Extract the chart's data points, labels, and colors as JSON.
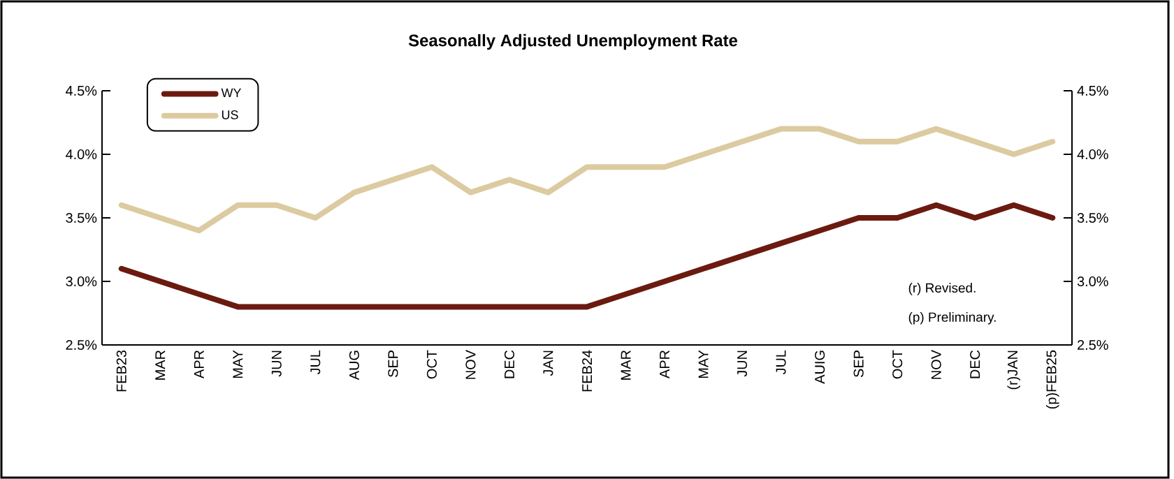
{
  "chart_data": {
    "type": "line",
    "title": "Seasonally Adjusted Unemployment Rate",
    "categories": [
      "FEB23",
      "MAR",
      "APR",
      "MAY",
      "JUN",
      "JUL",
      "AUG",
      "SEP",
      "OCT",
      "NOV",
      "DEC",
      "JAN",
      "FEB24",
      "MAR",
      "APR",
      "MAY",
      "JUN",
      "JUL",
      "AUIG",
      "SEP",
      "OCT",
      "NOV",
      "DEC",
      "(r)JAN",
      "(p)FEB25"
    ],
    "series": [
      {
        "name": "WY",
        "color": "#6b1a10",
        "values": [
          3.1,
          3.0,
          2.9,
          2.8,
          2.8,
          2.8,
          2.8,
          2.8,
          2.8,
          2.8,
          2.8,
          2.8,
          2.8,
          2.9,
          3.0,
          3.1,
          3.2,
          3.3,
          3.4,
          3.5,
          3.5,
          3.6,
          3.5,
          3.6,
          3.5
        ]
      },
      {
        "name": "US",
        "color": "#dccba0",
        "values": [
          3.6,
          3.5,
          3.4,
          3.6,
          3.6,
          3.5,
          3.7,
          3.8,
          3.9,
          3.7,
          3.8,
          3.7,
          3.9,
          3.9,
          3.9,
          4.0,
          4.1,
          4.2,
          4.2,
          4.1,
          4.1,
          4.2,
          4.1,
          4.0,
          4.1
        ]
      }
    ],
    "ylim": [
      2.5,
      4.5
    ],
    "yticks": [
      {
        "value": 2.5,
        "label": "2.5%"
      },
      {
        "value": 3.0,
        "label": "3.0%"
      },
      {
        "value": 3.5,
        "label": "3.5%"
      },
      {
        "value": 4.0,
        "label": "4.0%"
      },
      {
        "value": 4.5,
        "label": "4.5%"
      }
    ],
    "y2lim": [
      2.5,
      4.5
    ],
    "y2ticks": [
      {
        "value": 2.5,
        "label": "2.5%"
      },
      {
        "value": 3.0,
        "label": "3.0%"
      },
      {
        "value": 3.5,
        "label": "3.5%"
      },
      {
        "value": 4.0,
        "label": "4.0%"
      },
      {
        "value": 4.5,
        "label": "4.5%"
      }
    ],
    "legend": "top left",
    "grid": false,
    "marker": "none",
    "line_style": "solid",
    "annotations": [
      "(r) Revised.",
      "(p) Preliminary."
    ]
  }
}
